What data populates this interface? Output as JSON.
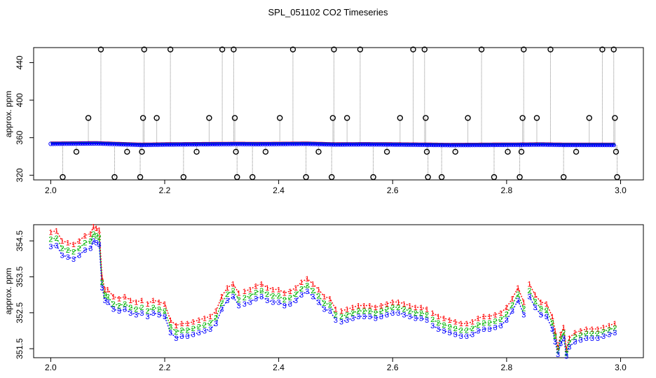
{
  "figure_title": "SPL_051102  CO2 Timeseries",
  "colors": {
    "red": "#ff0000",
    "green": "#00b400",
    "blue": "#0000ff",
    "cyan": "#00cccc",
    "gray": "#888888",
    "black": "#000000"
  },
  "chart_data": [
    {
      "type": "scatter",
      "title": "",
      "xlabel": "",
      "ylabel": "approx. ppm",
      "xlim": [
        1.97,
        3.04
      ],
      "ylim": [
        315,
        456
      ],
      "xticks": [
        2.0,
        2.2,
        2.4,
        2.6,
        2.8,
        3.0
      ],
      "xtick_labels": [
        "2.0",
        "2.2",
        "2.4",
        "2.6",
        "2.8",
        "3.0"
      ],
      "yticks": [
        320,
        360,
        400,
        440
      ],
      "ytick_labels": [
        "320",
        "360",
        "400",
        "440"
      ],
      "baseline": {
        "x": [
          2.0,
          2.08,
          2.16,
          2.2,
          2.33,
          2.36,
          2.45,
          2.5,
          2.55,
          2.6,
          2.66,
          2.7,
          2.83,
          2.86,
          2.9,
          2.99
        ],
        "y": [
          353.4,
          353.8,
          352.2,
          352.6,
          353.2,
          353.0,
          353.4,
          352.6,
          352.8,
          352.6,
          352.3,
          352.0,
          352.4,
          352.6,
          352.2,
          352.2
        ]
      },
      "spikes": [
        {
          "x": 2.021,
          "y": 318
        },
        {
          "x": 2.045,
          "y": 345
        },
        {
          "x": 2.066,
          "y": 381
        },
        {
          "x": 2.088,
          "y": 454
        },
        {
          "x": 2.112,
          "y": 318
        },
        {
          "x": 2.134,
          "y": 345
        },
        {
          "x": 2.157,
          "y": 318
        },
        {
          "x": 2.16,
          "y": 345
        },
        {
          "x": 2.162,
          "y": 381
        },
        {
          "x": 2.164,
          "y": 454
        },
        {
          "x": 2.186,
          "y": 381
        },
        {
          "x": 2.21,
          "y": 454
        },
        {
          "x": 2.233,
          "y": 318
        },
        {
          "x": 2.256,
          "y": 345
        },
        {
          "x": 2.278,
          "y": 381
        },
        {
          "x": 2.301,
          "y": 454
        },
        {
          "x": 2.321,
          "y": 454
        },
        {
          "x": 2.323,
          "y": 381
        },
        {
          "x": 2.325,
          "y": 345
        },
        {
          "x": 2.327,
          "y": 318
        },
        {
          "x": 2.354,
          "y": 318
        },
        {
          "x": 2.377,
          "y": 345
        },
        {
          "x": 2.402,
          "y": 381
        },
        {
          "x": 2.425,
          "y": 454
        },
        {
          "x": 2.448,
          "y": 318
        },
        {
          "x": 2.47,
          "y": 345
        },
        {
          "x": 2.493,
          "y": 318
        },
        {
          "x": 2.495,
          "y": 381
        },
        {
          "x": 2.497,
          "y": 454
        },
        {
          "x": 2.52,
          "y": 381
        },
        {
          "x": 2.543,
          "y": 454
        },
        {
          "x": 2.566,
          "y": 318
        },
        {
          "x": 2.59,
          "y": 345
        },
        {
          "x": 2.613,
          "y": 381
        },
        {
          "x": 2.636,
          "y": 454
        },
        {
          "x": 2.656,
          "y": 454
        },
        {
          "x": 2.658,
          "y": 381
        },
        {
          "x": 2.66,
          "y": 345
        },
        {
          "x": 2.662,
          "y": 318
        },
        {
          "x": 2.686,
          "y": 318
        },
        {
          "x": 2.71,
          "y": 345
        },
        {
          "x": 2.732,
          "y": 381
        },
        {
          "x": 2.756,
          "y": 454
        },
        {
          "x": 2.778,
          "y": 318
        },
        {
          "x": 2.802,
          "y": 345
        },
        {
          "x": 2.823,
          "y": 318
        },
        {
          "x": 2.826,
          "y": 345
        },
        {
          "x": 2.828,
          "y": 381
        },
        {
          "x": 2.83,
          "y": 454
        },
        {
          "x": 2.853,
          "y": 381
        },
        {
          "x": 2.877,
          "y": 454
        },
        {
          "x": 2.9,
          "y": 318
        },
        {
          "x": 2.922,
          "y": 345
        },
        {
          "x": 2.945,
          "y": 381
        },
        {
          "x": 2.968,
          "y": 454
        },
        {
          "x": 2.988,
          "y": 454
        },
        {
          "x": 2.99,
          "y": 381
        },
        {
          "x": 2.992,
          "y": 345
        },
        {
          "x": 2.994,
          "y": 318
        }
      ]
    },
    {
      "type": "line",
      "title": "",
      "xlabel": "",
      "ylabel": "approx. ppm",
      "xlim": [
        1.97,
        3.04
      ],
      "ylim": [
        351.25,
        354.95
      ],
      "xticks": [
        2.0,
        2.2,
        2.4,
        2.6,
        2.8,
        3.0
      ],
      "xtick_labels": [
        "2.0",
        "2.2",
        "2.4",
        "2.6",
        "2.8",
        "3.0"
      ],
      "yticks": [
        351.5,
        352.5,
        353.5,
        354.5
      ],
      "ytick_labels": [
        "351.5",
        "352.5",
        "353.5",
        "354.5"
      ],
      "gaps_after_x": [
        2.16,
        2.33,
        2.5,
        2.66,
        2.83
      ],
      "series": [
        {
          "name": "1",
          "marker": "1",
          "color": "#ff0000",
          "x": [
            2.0,
            2.01,
            2.02,
            2.03,
            2.04,
            2.05,
            2.06,
            2.07,
            2.075,
            2.08,
            2.085,
            2.09,
            2.095,
            2.1,
            2.11,
            2.12,
            2.13,
            2.14,
            2.15,
            2.16,
            2.17,
            2.18,
            2.19,
            2.2,
            2.21,
            2.22,
            2.23,
            2.24,
            2.25,
            2.26,
            2.27,
            2.28,
            2.29,
            2.3,
            2.31,
            2.32,
            2.33,
            2.34,
            2.35,
            2.36,
            2.37,
            2.38,
            2.39,
            2.4,
            2.41,
            2.42,
            2.43,
            2.44,
            2.45,
            2.46,
            2.47,
            2.48,
            2.49,
            2.5,
            2.51,
            2.52,
            2.53,
            2.54,
            2.55,
            2.56,
            2.57,
            2.58,
            2.59,
            2.6,
            2.61,
            2.62,
            2.63,
            2.64,
            2.65,
            2.66,
            2.67,
            2.68,
            2.69,
            2.7,
            2.71,
            2.72,
            2.73,
            2.74,
            2.75,
            2.76,
            2.77,
            2.78,
            2.79,
            2.8,
            2.81,
            2.82,
            2.83,
            2.84,
            2.85,
            2.86,
            2.87,
            2.88,
            2.885,
            2.89,
            2.895,
            2.9,
            2.905,
            2.91,
            2.92,
            2.93,
            2.94,
            2.95,
            2.96,
            2.97,
            2.98,
            2.99
          ],
          "values": [
            354.75,
            354.78,
            354.5,
            354.45,
            354.4,
            354.5,
            354.65,
            354.7,
            354.9,
            354.85,
            354.8,
            353.5,
            353.15,
            353.15,
            352.95,
            352.9,
            352.95,
            352.85,
            352.8,
            352.85,
            352.75,
            352.85,
            352.8,
            352.75,
            352.3,
            352.15,
            352.2,
            352.2,
            352.25,
            352.3,
            352.35,
            352.4,
            352.55,
            352.95,
            353.2,
            353.3,
            353.05,
            353.1,
            353.15,
            353.25,
            353.3,
            353.2,
            353.15,
            353.15,
            353.05,
            353.1,
            353.2,
            353.35,
            353.45,
            353.3,
            353.15,
            352.95,
            352.9,
            352.6,
            352.55,
            352.6,
            352.65,
            352.7,
            352.7,
            352.7,
            352.65,
            352.7,
            352.75,
            352.8,
            352.8,
            352.75,
            352.7,
            352.65,
            352.65,
            352.6,
            352.5,
            352.4,
            352.35,
            352.3,
            352.25,
            352.2,
            352.2,
            352.25,
            352.35,
            352.4,
            352.4,
            352.45,
            352.5,
            352.65,
            352.9,
            353.2,
            352.8,
            353.3,
            353.0,
            352.8,
            352.75,
            352.4,
            352.0,
            351.55,
            351.9,
            352.1,
            351.5,
            351.8,
            351.95,
            352.0,
            352.05,
            352.05,
            352.05,
            352.1,
            352.15,
            352.2
          ]
        },
        {
          "name": "2",
          "marker": "2",
          "color": "#00b400",
          "x": [
            2.0,
            2.01,
            2.02,
            2.03,
            2.04,
            2.05,
            2.06,
            2.07,
            2.075,
            2.08,
            2.085,
            2.09,
            2.095,
            2.1,
            2.11,
            2.12,
            2.13,
            2.14,
            2.15,
            2.16,
            2.17,
            2.18,
            2.19,
            2.2,
            2.21,
            2.22,
            2.23,
            2.24,
            2.25,
            2.26,
            2.27,
            2.28,
            2.29,
            2.3,
            2.31,
            2.32,
            2.33,
            2.34,
            2.35,
            2.36,
            2.37,
            2.38,
            2.39,
            2.4,
            2.41,
            2.42,
            2.43,
            2.44,
            2.45,
            2.46,
            2.47,
            2.48,
            2.49,
            2.5,
            2.51,
            2.52,
            2.53,
            2.54,
            2.55,
            2.56,
            2.57,
            2.58,
            2.59,
            2.6,
            2.61,
            2.62,
            2.63,
            2.64,
            2.65,
            2.66,
            2.67,
            2.68,
            2.69,
            2.7,
            2.71,
            2.72,
            2.73,
            2.74,
            2.75,
            2.76,
            2.77,
            2.78,
            2.79,
            2.8,
            2.81,
            2.82,
            2.83,
            2.84,
            2.85,
            2.86,
            2.87,
            2.88,
            2.885,
            2.89,
            2.895,
            2.9,
            2.905,
            2.91,
            2.92,
            2.93,
            2.94,
            2.95,
            2.96,
            2.97,
            2.98,
            2.99
          ],
          "values": [
            354.55,
            354.58,
            354.3,
            354.25,
            354.2,
            354.3,
            354.45,
            354.5,
            354.7,
            354.65,
            354.6,
            353.35,
            353.0,
            352.95,
            352.75,
            352.7,
            352.75,
            352.65,
            352.6,
            352.65,
            352.55,
            352.65,
            352.6,
            352.55,
            352.12,
            351.97,
            352.02,
            352.02,
            352.07,
            352.12,
            352.17,
            352.22,
            352.37,
            352.77,
            353.02,
            353.12,
            352.87,
            352.92,
            352.97,
            353.07,
            353.12,
            353.02,
            352.97,
            352.97,
            352.87,
            352.92,
            353.02,
            353.17,
            353.27,
            353.12,
            352.97,
            352.77,
            352.72,
            352.45,
            352.4,
            352.45,
            352.5,
            352.55,
            352.55,
            352.55,
            352.5,
            352.55,
            352.6,
            352.65,
            352.65,
            352.6,
            352.55,
            352.5,
            352.5,
            352.45,
            352.32,
            352.22,
            352.17,
            352.12,
            352.07,
            352.02,
            352.02,
            352.07,
            352.17,
            352.22,
            352.22,
            352.27,
            352.32,
            352.47,
            352.72,
            353.02,
            352.62,
            353.12,
            352.82,
            352.62,
            352.57,
            352.22,
            351.85,
            351.45,
            351.78,
            351.95,
            351.38,
            351.68,
            351.83,
            351.88,
            351.93,
            351.93,
            351.93,
            351.98,
            352.03,
            352.08
          ]
        },
        {
          "name": "3",
          "marker": "3",
          "color": "#0000ff",
          "x": [
            2.0,
            2.01,
            2.02,
            2.03,
            2.04,
            2.05,
            2.06,
            2.07,
            2.075,
            2.08,
            2.085,
            2.09,
            2.095,
            2.1,
            2.11,
            2.12,
            2.13,
            2.14,
            2.15,
            2.16,
            2.17,
            2.18,
            2.19,
            2.2,
            2.21,
            2.22,
            2.23,
            2.24,
            2.25,
            2.26,
            2.27,
            2.28,
            2.29,
            2.3,
            2.31,
            2.32,
            2.33,
            2.34,
            2.35,
            2.36,
            2.37,
            2.38,
            2.39,
            2.4,
            2.41,
            2.42,
            2.43,
            2.44,
            2.45,
            2.46,
            2.47,
            2.48,
            2.49,
            2.5,
            2.51,
            2.52,
            2.53,
            2.54,
            2.55,
            2.56,
            2.57,
            2.58,
            2.59,
            2.6,
            2.61,
            2.62,
            2.63,
            2.64,
            2.65,
            2.66,
            2.67,
            2.68,
            2.69,
            2.7,
            2.71,
            2.72,
            2.73,
            2.74,
            2.75,
            2.76,
            2.77,
            2.78,
            2.79,
            2.8,
            2.81,
            2.82,
            2.83,
            2.84,
            2.85,
            2.86,
            2.87,
            2.88,
            2.885,
            2.89,
            2.895,
            2.9,
            2.905,
            2.91,
            2.92,
            2.93,
            2.94,
            2.95,
            2.96,
            2.97,
            2.98,
            2.99
          ],
          "values": [
            354.35,
            354.38,
            354.1,
            354.05,
            354.0,
            354.1,
            354.25,
            354.3,
            354.5,
            354.45,
            354.4,
            353.2,
            352.85,
            352.8,
            352.6,
            352.55,
            352.6,
            352.5,
            352.45,
            352.5,
            352.4,
            352.5,
            352.45,
            352.4,
            351.95,
            351.8,
            351.85,
            351.85,
            351.9,
            351.95,
            352.0,
            352.05,
            352.2,
            352.6,
            352.85,
            352.95,
            352.7,
            352.75,
            352.8,
            352.9,
            352.95,
            352.85,
            352.8,
            352.8,
            352.7,
            352.75,
            352.85,
            353.0,
            353.1,
            352.95,
            352.8,
            352.6,
            352.55,
            352.3,
            352.25,
            352.3,
            352.35,
            352.4,
            352.4,
            352.4,
            352.35,
            352.4,
            352.45,
            352.5,
            352.5,
            352.45,
            352.4,
            352.35,
            352.35,
            352.3,
            352.15,
            352.05,
            352.0,
            351.95,
            351.9,
            351.85,
            351.85,
            351.9,
            352.0,
            352.05,
            352.05,
            352.1,
            352.15,
            352.3,
            352.55,
            352.85,
            352.45,
            352.95,
            352.65,
            352.45,
            352.4,
            352.05,
            351.7,
            351.35,
            351.65,
            351.8,
            351.3,
            351.55,
            351.7,
            351.75,
            351.8,
            351.8,
            351.8,
            351.85,
            351.9,
            351.95
          ]
        }
      ]
    }
  ]
}
